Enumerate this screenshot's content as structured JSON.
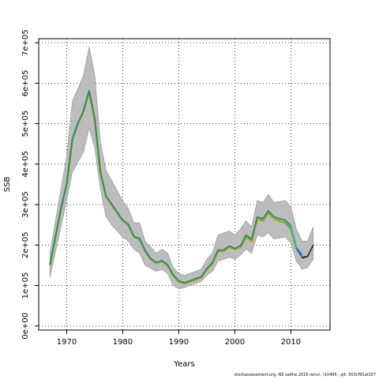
{
  "chart_data": {
    "type": "line",
    "xlabel": "Years",
    "ylabel": "SSB",
    "xlim": [
      1965,
      2017
    ],
    "ylim": [
      -10000,
      710000
    ],
    "x_ticks": [
      1970,
      1980,
      1990,
      2000,
      2010
    ],
    "y_ticks": [
      0,
      100000,
      200000,
      300000,
      400000,
      500000,
      600000,
      700000
    ],
    "y_tick_labels": [
      "0e+00",
      "1e+05",
      "2e+05",
      "3e+05",
      "4e+05",
      "5e+05",
      "6e+05",
      "7e+05"
    ],
    "grid": true,
    "band": {
      "x": [
        1967,
        1970,
        1971,
        1973,
        1974,
        1975,
        1976,
        1977,
        1978,
        1980,
        1981,
        1982,
        1983,
        1984,
        1986,
        1987,
        1988,
        1989,
        1990,
        1991,
        1992,
        1994,
        1995,
        1996,
        1997,
        1999,
        2000,
        2001,
        2002,
        2003,
        2004,
        2005,
        2006,
        2007,
        2009,
        2010,
        2011,
        2012,
        2013,
        2014
      ],
      "lower": [
        120000,
        310000,
        380000,
        430000,
        490000,
        440000,
        340000,
        270000,
        250000,
        220000,
        210000,
        190000,
        180000,
        150000,
        135000,
        140000,
        130000,
        100000,
        92000,
        95000,
        100000,
        110000,
        125000,
        135000,
        160000,
        170000,
        165000,
        175000,
        190000,
        180000,
        225000,
        220000,
        230000,
        215000,
        220000,
        205000,
        160000,
        140000,
        145000,
        165000
      ],
      "upper": [
        180000,
        420000,
        555000,
        620000,
        690000,
        620000,
        455000,
        385000,
        360000,
        310000,
        290000,
        255000,
        255000,
        210000,
        180000,
        190000,
        180000,
        145000,
        130000,
        125000,
        130000,
        140000,
        165000,
        180000,
        225000,
        235000,
        225000,
        240000,
        260000,
        245000,
        310000,
        305000,
        325000,
        305000,
        310000,
        295000,
        240000,
        210000,
        210000,
        245000
      ]
    },
    "series": [
      {
        "x": [
          1967,
          1969,
          1970,
          1971,
          1972,
          1973,
          1974,
          1975,
          1976,
          1977,
          1978,
          1979,
          1980,
          1981,
          1982,
          1983,
          1984,
          1985,
          1986,
          1987,
          1988,
          1989,
          1990,
          1991,
          1992,
          1993,
          1994,
          1995,
          1996,
          1997,
          1998,
          1999,
          2000,
          2001,
          2002,
          2003,
          2004,
          2005,
          2006,
          2007,
          2008,
          2009,
          2010,
          2011
        ],
        "values": [
          150000,
          290000,
          350000,
          460000,
          500000,
          530000,
          580000,
          510000,
          380000,
          320000,
          300000,
          280000,
          260000,
          250000,
          220000,
          215000,
          185000,
          165000,
          155000,
          160000,
          150000,
          125000,
          110000,
          105000,
          110000,
          115000,
          120000,
          140000,
          155000,
          185000,
          185000,
          195000,
          190000,
          195000,
          220000,
          210000,
          265000,
          260000,
          280000,
          265000,
          260000,
          255000,
          240000,
          190000
        ],
        "color": "#9aa51e"
      },
      {
        "x": [
          1967,
          1969,
          1970,
          1971,
          1972,
          1973,
          1974,
          1975,
          1976,
          1977,
          1978,
          1979,
          1980,
          1981,
          1982,
          1983,
          1984,
          1985,
          1986,
          1987,
          1988,
          1989,
          1990,
          1991,
          1992,
          1993,
          1994,
          1995,
          1996,
          1997,
          1998,
          1999,
          2000,
          2001,
          2002,
          2003,
          2004,
          2005,
          2006,
          2007,
          2008,
          2009,
          2010,
          2011,
          2012
        ],
        "values": [
          152000,
          292000,
          352000,
          462000,
          502000,
          532000,
          582000,
          512000,
          382000,
          322000,
          302000,
          282000,
          262000,
          252000,
          222000,
          217000,
          187000,
          167000,
          157000,
          162000,
          152000,
          127000,
          112000,
          107000,
          112000,
          117000,
          122000,
          142000,
          157000,
          188000,
          188000,
          198000,
          192000,
          198000,
          225000,
          215000,
          270000,
          265000,
          285000,
          270000,
          265000,
          262000,
          248000,
          195000,
          175000
        ],
        "color": "#1f8a70"
      },
      {
        "x": [
          2009,
          2010,
          2011,
          2012
        ],
        "values": [
          258000,
          245000,
          195000,
          178000
        ],
        "color": "#2eb8c4"
      },
      {
        "x": [
          2011,
          2012,
          2013
        ],
        "values": [
          192000,
          170000,
          172000
        ],
        "color": "#3a3fcf"
      },
      {
        "x": [
          2012,
          2013,
          2014
        ],
        "values": [
          168000,
          172000,
          200000
        ],
        "color": "#222222"
      }
    ]
  },
  "footer": "stockassessment.org, NS saithe 2016 rerun, r10495 , git: 503cf91af157"
}
